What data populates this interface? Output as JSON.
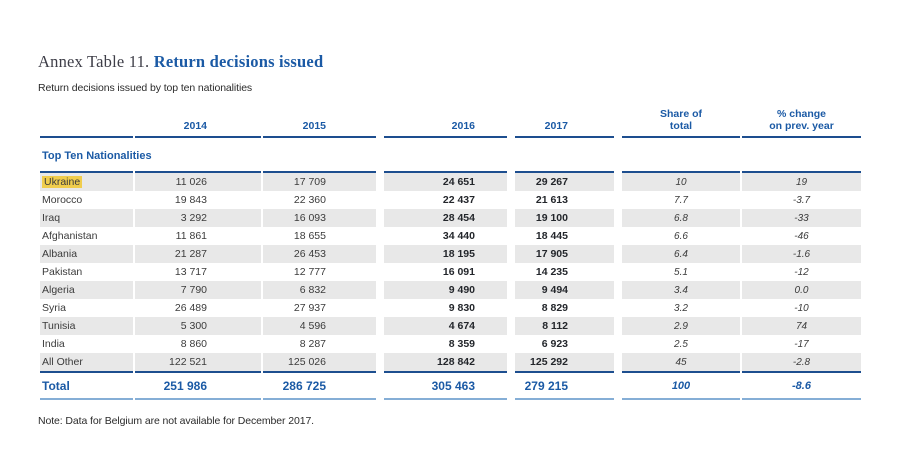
{
  "title": {
    "prefix": "Annex Table 11.",
    "main": "Return decisions issued"
  },
  "subtitle": "Return decisions issued by top ten nationalities",
  "note": "Note: Data for Belgium are not available for December 2017.",
  "colors": {
    "accent_blue": "#1b5aa5",
    "rule_dark_blue": "#1d4e8f",
    "rule_light_blue": "#85aed6",
    "row_shade_gray": "#e8e8e8",
    "highlight_yellow": "#f0cd4d"
  },
  "table": {
    "section_label": "Top Ten Nationalities",
    "header": {
      "y2014": "2014",
      "y2015": "2015",
      "y2016": "2016",
      "y2017": "2017",
      "share_line1": "Share of",
      "share_line2": "total",
      "pct_line1": "% change",
      "pct_line2": "on prev. year"
    },
    "rows": [
      {
        "name": "Ukraine",
        "highlight": true,
        "y2014": "11 026",
        "y2015": "17 709",
        "y2016": "24 651",
        "y2017": "29 267",
        "share": "10",
        "pct": "19"
      },
      {
        "name": "Morocco",
        "highlight": false,
        "y2014": "19 843",
        "y2015": "22 360",
        "y2016": "22 437",
        "y2017": "21 613",
        "share": "7.7",
        "pct": "-3.7"
      },
      {
        "name": "Iraq",
        "highlight": false,
        "y2014": "3 292",
        "y2015": "16 093",
        "y2016": "28 454",
        "y2017": "19 100",
        "share": "6.8",
        "pct": "-33"
      },
      {
        "name": "Afghanistan",
        "highlight": false,
        "y2014": "11 861",
        "y2015": "18 655",
        "y2016": "34 440",
        "y2017": "18 445",
        "share": "6.6",
        "pct": "-46"
      },
      {
        "name": "Albania",
        "highlight": false,
        "y2014": "21 287",
        "y2015": "26 453",
        "y2016": "18 195",
        "y2017": "17 905",
        "share": "6.4",
        "pct": "-1.6"
      },
      {
        "name": "Pakistan",
        "highlight": false,
        "y2014": "13 717",
        "y2015": "12 777",
        "y2016": "16 091",
        "y2017": "14 235",
        "share": "5.1",
        "pct": "-12"
      },
      {
        "name": "Algeria",
        "highlight": false,
        "y2014": "7 790",
        "y2015": "6 832",
        "y2016": "9 490",
        "y2017": "9 494",
        "share": "3.4",
        "pct": "0.0"
      },
      {
        "name": "Syria",
        "highlight": false,
        "y2014": "26 489",
        "y2015": "27 937",
        "y2016": "9 830",
        "y2017": "8 829",
        "share": "3.2",
        "pct": "-10"
      },
      {
        "name": "Tunisia",
        "highlight": false,
        "y2014": "5 300",
        "y2015": "4 596",
        "y2016": "4 674",
        "y2017": "8 112",
        "share": "2.9",
        "pct": "74"
      },
      {
        "name": "India",
        "highlight": false,
        "y2014": "8 860",
        "y2015": "8 287",
        "y2016": "8 359",
        "y2017": "6 923",
        "share": "2.5",
        "pct": "-17"
      },
      {
        "name": "All Other",
        "highlight": false,
        "y2014": "122 521",
        "y2015": "125 026",
        "y2016": "128 842",
        "y2017": "125 292",
        "share": "45",
        "pct": "-2.8"
      }
    ],
    "total": {
      "name": "Total",
      "y2014": "251 986",
      "y2015": "286 725",
      "y2016": "305 463",
      "y2017": "279 215",
      "share": "100",
      "pct": "-8.6"
    }
  }
}
